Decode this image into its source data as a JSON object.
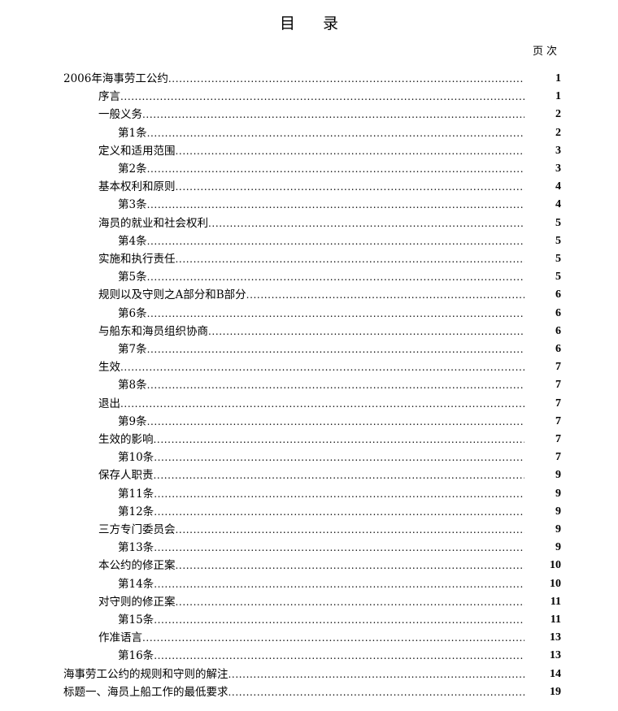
{
  "title": "目 录",
  "page_header": "页次",
  "entries": [
    {
      "level": 0,
      "label": "2006年海事劳工公约",
      "page": "1"
    },
    {
      "level": 1,
      "label": "序言",
      "page": "1"
    },
    {
      "level": 1,
      "label": "一般义务",
      "page": "2"
    },
    {
      "level": 2,
      "label": "第1条",
      "page": "2"
    },
    {
      "level": 1,
      "label": "定义和适用范围",
      "page": "3"
    },
    {
      "level": 2,
      "label": "第2条",
      "page": "3"
    },
    {
      "level": 1,
      "label": "基本权利和原则",
      "page": "4"
    },
    {
      "level": 2,
      "label": "第3条",
      "page": "4"
    },
    {
      "level": 1,
      "label": "海员的就业和社会权利",
      "page": "5"
    },
    {
      "level": 2,
      "label": "第4条",
      "page": "5"
    },
    {
      "level": 1,
      "label": "实施和执行责任",
      "page": "5"
    },
    {
      "level": 2,
      "label": "第5条",
      "page": "5"
    },
    {
      "level": 1,
      "label": "规则以及守则之A部分和B部分",
      "page": "6"
    },
    {
      "level": 2,
      "label": "第6条",
      "page": "6"
    },
    {
      "level": 1,
      "label": "与船东和海员组织协商",
      "page": "6"
    },
    {
      "level": 2,
      "label": "第7条",
      "page": "6"
    },
    {
      "level": 1,
      "label": "生效",
      "page": "7"
    },
    {
      "level": 2,
      "label": "第8条",
      "page": "7"
    },
    {
      "level": 1,
      "label": "退出",
      "page": "7"
    },
    {
      "level": 2,
      "label": "第9条",
      "page": "7"
    },
    {
      "level": 1,
      "label": "生效的影响",
      "page": "7"
    },
    {
      "level": 2,
      "label": "第10条",
      "page": "7"
    },
    {
      "level": 1,
      "label": "保存人职责",
      "page": "9"
    },
    {
      "level": 2,
      "label": "第11条",
      "page": "9"
    },
    {
      "level": 2,
      "label": "第12条",
      "page": "9"
    },
    {
      "level": 1,
      "label": "三方专门委员会",
      "page": "9"
    },
    {
      "level": 2,
      "label": "第13条",
      "page": "9"
    },
    {
      "level": 1,
      "label": "本公约的修正案",
      "page": "10"
    },
    {
      "level": 2,
      "label": "第14条",
      "page": "10"
    },
    {
      "level": 1,
      "label": "对守则的修正案",
      "page": "11"
    },
    {
      "level": 2,
      "label": "第15条",
      "page": "11"
    },
    {
      "level": 1,
      "label": "作准语言",
      "page": "13"
    },
    {
      "level": 2,
      "label": "第16条",
      "page": "13"
    },
    {
      "level": 0,
      "label": "海事劳工公约的规则和守则的解注",
      "page": "14"
    },
    {
      "level": 0,
      "label": "标题一、海员上船工作的最低要求",
      "page": "19"
    }
  ]
}
